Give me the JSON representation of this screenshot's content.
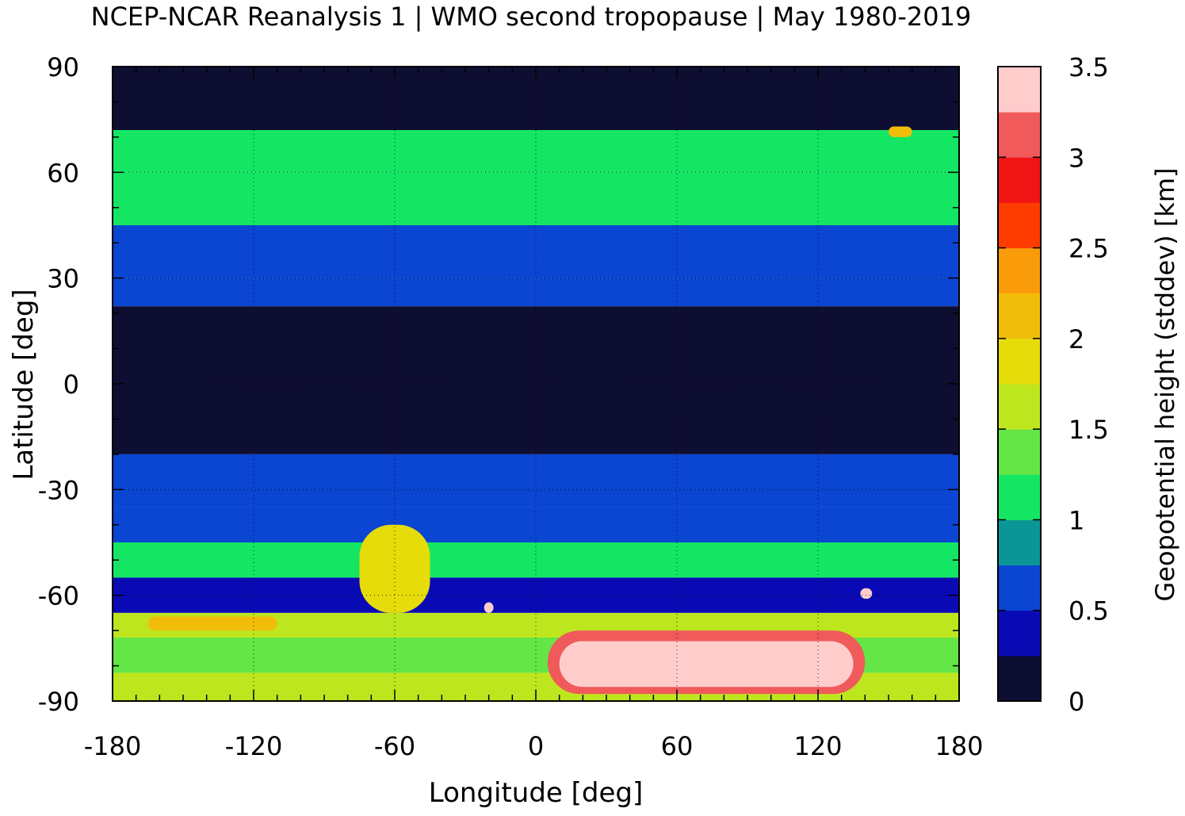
{
  "chart_data": {
    "type": "heatmap",
    "title": "NCEP-NCAR Reanalysis 1 | WMO second tropopause | May 1980-2019",
    "xlabel": "Longitude [deg]",
    "ylabel": "Latitude [deg]",
    "colorbar_label": "Geopotential height (stddev) [km]",
    "xlim": [
      -180,
      180
    ],
    "ylim": [
      -90,
      90
    ],
    "xticks": [
      "-180",
      "-120",
      "-60",
      "0",
      "60",
      "120",
      "180"
    ],
    "yticks": [
      "90",
      "60",
      "30",
      "0",
      "-30",
      "-60",
      "-90"
    ],
    "colorbar_ticks": [
      "0",
      "0.5",
      "1",
      "1.5",
      "2",
      "2.5",
      "3",
      "3.5"
    ],
    "colorbar_range": [
      0,
      3.5
    ],
    "grid": true,
    "coastlines": true,
    "colormap": [
      "#0e0e32",
      "#0a0ab4",
      "#0a46d2",
      "#0a9696",
      "#14e664",
      "#64e646",
      "#bee61e",
      "#e6dc0a",
      "#f0be0a",
      "#fa9b0a",
      "#ff3c00",
      "#f01414",
      "#f05a5a",
      "#ffcccc"
    ],
    "zonal_bands": [
      {
        "lat_range": [
          72,
          90
        ],
        "value": 0.1
      },
      {
        "lat_range": [
          60,
          72
        ],
        "value": 1.1
      },
      {
        "lat_range": [
          45,
          60
        ],
        "value": 1.0
      },
      {
        "lat_range": [
          30,
          45
        ],
        "value": 0.6
      },
      {
        "lat_range": [
          22,
          30
        ],
        "value": 0.5
      },
      {
        "lat_range": [
          -20,
          22
        ],
        "value": 0.1
      },
      {
        "lat_range": [
          -35,
          -20
        ],
        "value": 0.5
      },
      {
        "lat_range": [
          -45,
          -35
        ],
        "value": 0.7
      },
      {
        "lat_range": [
          -55,
          -45
        ],
        "value": 1.0
      },
      {
        "lat_range": [
          -65,
          -55
        ],
        "value": 0.3
      },
      {
        "lat_range": [
          -72,
          -65
        ],
        "value": 1.6
      },
      {
        "lat_range": [
          -82,
          -72
        ],
        "value": 1.3
      },
      {
        "lat_range": [
          -90,
          -82
        ],
        "value": 1.5
      }
    ],
    "features": [
      {
        "lon": [
          -75,
          -45
        ],
        "lat": [
          -65,
          -40
        ],
        "value": 1.9
      },
      {
        "lon": [
          10,
          135
        ],
        "lat": [
          -86,
          -73
        ],
        "value": 3.5
      },
      {
        "lon": [
          5,
          140
        ],
        "lat": [
          -88,
          -70
        ],
        "value": 3.0
      },
      {
        "lon": [
          138,
          143
        ],
        "lat": [
          -61,
          -58
        ],
        "value": 3.5
      },
      {
        "lon": [
          -22,
          -18
        ],
        "lat": [
          -65,
          -62
        ],
        "value": 3.5
      },
      {
        "lon": [
          -165,
          -110
        ],
        "lat": [
          -70,
          -66
        ],
        "value": 2.2
      },
      {
        "lon": [
          150,
          160
        ],
        "lat": [
          70,
          73
        ],
        "value": 2.2
      }
    ]
  }
}
